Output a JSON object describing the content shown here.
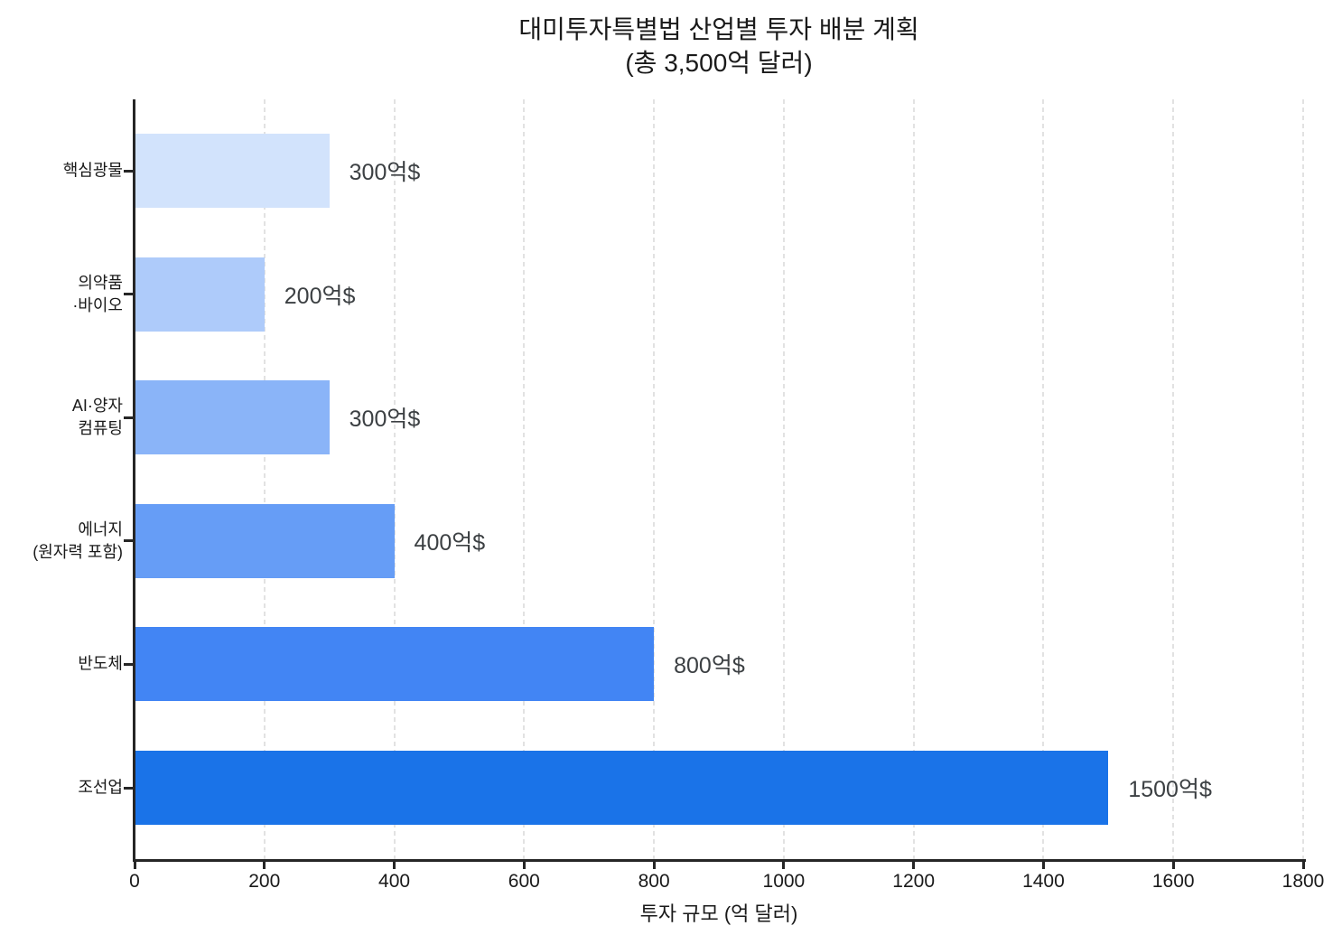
{
  "chart_data": {
    "type": "bar",
    "orientation": "horizontal",
    "title": "대미투자특별법 산업별 투자 배분 계획",
    "subtitle": "(총 3,500억 달러)",
    "xlabel": "투자 규모 (억 달러)",
    "ylabel": "",
    "categories": [
      [
        "핵심광물"
      ],
      [
        "의약품",
        "·바이오"
      ],
      [
        "AI·양자",
        "컴퓨팅"
      ],
      [
        "에너지",
        "(원자력 포함)"
      ],
      [
        "반도체"
      ],
      [
        "조선업"
      ]
    ],
    "values": [
      300,
      200,
      300,
      400,
      800,
      1500
    ],
    "value_labels": [
      "300억$",
      "200억$",
      "300억$",
      "400억$",
      "800억$",
      "1500억$"
    ],
    "bar_colors": [
      "#d2e3fc",
      "#aecbfa",
      "#8ab4f8",
      "#669df6",
      "#4285f4",
      "#1a73e8"
    ],
    "xlim": [
      0,
      1800
    ],
    "xticks": [
      0,
      200,
      400,
      600,
      800,
      1000,
      1200,
      1400,
      1600,
      1800
    ],
    "grid": "vertical-dashed",
    "legend": "none",
    "total_note": "총 3,500억 달러"
  },
  "colors": {
    "axis": "#262626",
    "gridline": "#e2e2e2",
    "title_text": "#1a1a1a",
    "tick_text": "#1a1a1a",
    "value_text": "#3c4043",
    "background": "#ffffff"
  }
}
